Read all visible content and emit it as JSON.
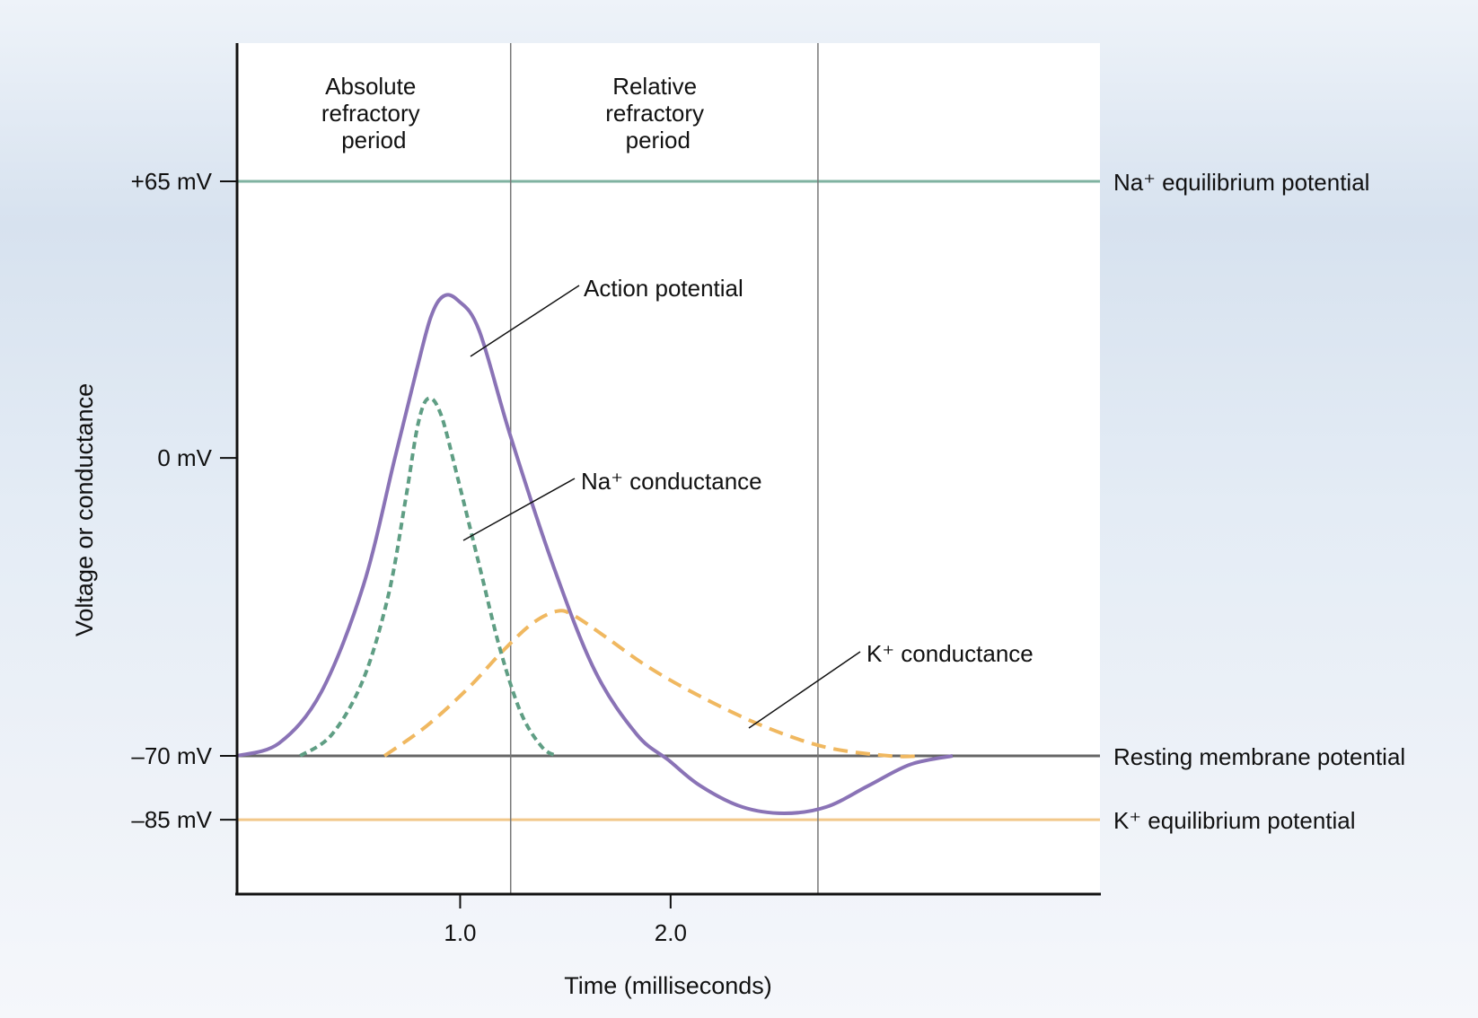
{
  "chart_data": {
    "type": "line",
    "title": "",
    "xlabel": "Time (milliseconds)",
    "ylabel": "Voltage or conductance",
    "xlim": [
      0,
      4.1
    ],
    "ylim": [
      -100,
      100
    ],
    "x_ticks": [
      {
        "value": 1.06,
        "label": "1.0"
      },
      {
        "value": 2.06,
        "label": "2.0"
      }
    ],
    "y_ticks": [
      {
        "value": 65,
        "label": "+65 mV"
      },
      {
        "value": 0,
        "label": "0 mV"
      },
      {
        "value": -70,
        "label": "–70 mV"
      },
      {
        "value": -85,
        "label": "–85 mV"
      }
    ],
    "reference_lines": [
      {
        "name": "Na⁺ equilibrium potential",
        "value": 65,
        "color": "#7fb2a0"
      },
      {
        "name": "Resting membrane potential",
        "value": -70,
        "color": "#666666"
      },
      {
        "name": "K⁺ equilibrium potential",
        "value": -85,
        "color": "#f2c88a"
      }
    ],
    "period_boundaries": [
      1.3,
      2.76
    ],
    "periods": [
      {
        "lines": [
          "Absolute",
          "refractory",
          "period"
        ],
        "x_center": 0.65
      },
      {
        "lines": [
          "Relative",
          "refractory",
          "period"
        ],
        "x_center": 2.0
      }
    ],
    "series": [
      {
        "name": "Action potential",
        "style": "solid",
        "color": "#8a73b6",
        "x": [
          0,
          0.2,
          0.4,
          0.6,
          0.75,
          0.85,
          0.92,
          0.98,
          1.05,
          1.15,
          1.3,
          1.5,
          1.7,
          1.9,
          2.05,
          2.2,
          2.4,
          2.6,
          2.8,
          3.0,
          3.2,
          3.4
        ],
        "y": [
          -70,
          -67,
          -55,
          -30,
          0,
          20,
          33,
          38,
          37,
          30,
          5,
          -25,
          -50,
          -65,
          -71,
          -77,
          -82,
          -83.5,
          -82,
          -77,
          -72,
          -70
        ]
      },
      {
        "name": "Na⁺ conductance",
        "style": "dashed",
        "color": "#5f9e84",
        "x": [
          0.3,
          0.45,
          0.6,
          0.72,
          0.8,
          0.86,
          0.91,
          0.97,
          1.05,
          1.15,
          1.25,
          1.35,
          1.45,
          1.52
        ],
        "y": [
          -70,
          -65,
          -52,
          -32,
          -10,
          8,
          14,
          10,
          -5,
          -25,
          -45,
          -60,
          -68,
          -70
        ]
      },
      {
        "name": "K⁺ conductance",
        "style": "dashed",
        "color": "#f0b860",
        "x": [
          0.7,
          0.9,
          1.1,
          1.25,
          1.4,
          1.52,
          1.6,
          1.75,
          1.95,
          2.2,
          2.5,
          2.8,
          3.1,
          3.25
        ],
        "y": [
          -70,
          -63,
          -54,
          -46,
          -39,
          -36,
          -37,
          -42,
          -49,
          -56,
          -63,
          -68,
          -70,
          -70
        ]
      }
    ],
    "annotations": [
      {
        "text": "Action potential",
        "series": "Action potential"
      },
      {
        "text": "Na⁺ conductance",
        "series": "Na⁺ conductance"
      },
      {
        "text": "K⁺ conductance",
        "series": "K⁺ conductance"
      }
    ]
  }
}
